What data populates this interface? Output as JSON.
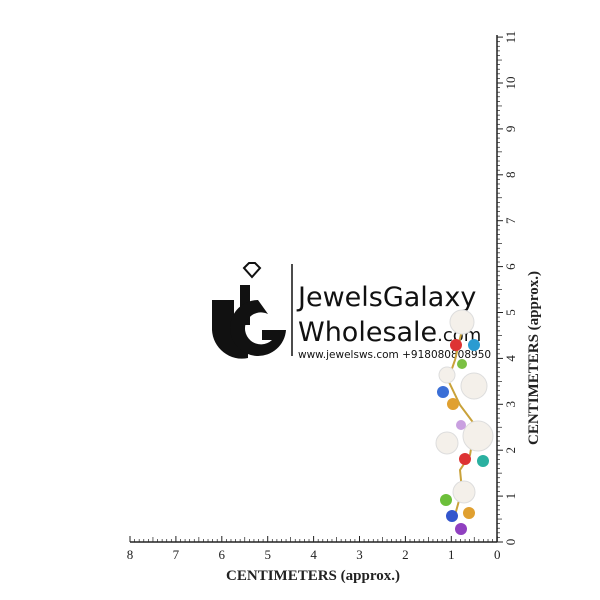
{
  "logo": {
    "line1": "JewelsGalaxy",
    "line2": "Wholesale",
    "line2_suffix": ".com",
    "contact": "www.jewelsws.com +918080808950"
  },
  "rulers": {
    "horizontal": {
      "labels": [
        8,
        7,
        6,
        5,
        4,
        3,
        2,
        1,
        0
      ],
      "title": "CENTIMETERS (approx.)"
    },
    "vertical": {
      "labels": [
        0,
        1,
        2,
        3,
        4,
        5,
        6,
        7,
        8,
        9,
        10,
        11
      ],
      "title": "CENTIMETERS (approx.)"
    }
  }
}
